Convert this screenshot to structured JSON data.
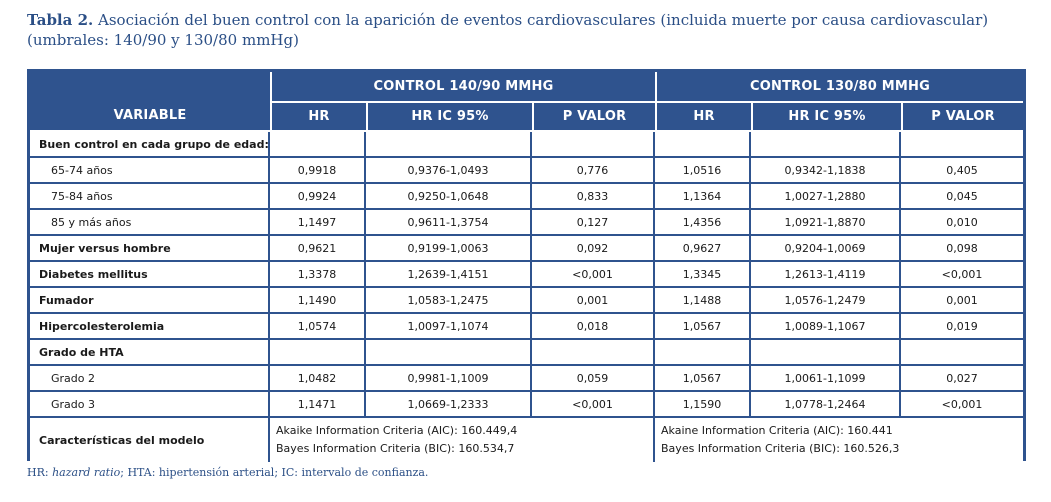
{
  "caption": {
    "label": "Tabla 2.",
    "text": " Asociación del buen control con la aparición de eventos cardiovasculares (incluida muerte por causa cardiovascular) (umbrales: 140/90 y 130/80 mmHg)"
  },
  "header": {
    "variable": "VARIABLE",
    "group1": "CONTROL 140/90 MMHG",
    "group2": "CONTROL 130/80 MMHG",
    "hr": "HR",
    "ic": "HR IC 95%",
    "p": "P VALOR"
  },
  "rows": [
    {
      "name": "Buen control en cada grupo de edad:",
      "bold": true,
      "indent": false,
      "cells": [
        "",
        "",
        "",
        "",
        "",
        ""
      ]
    },
    {
      "name": "65-74 años",
      "bold": false,
      "indent": true,
      "cells": [
        "0,9918",
        "0,9376-1,0493",
        "0,776",
        "1,0516",
        "0,9342-1,1838",
        "0,405"
      ]
    },
    {
      "name": "75-84 años",
      "bold": false,
      "indent": true,
      "cells": [
        "0,9924",
        "0,9250-1,0648",
        "0,833",
        "1,1364",
        "1,0027-1,2880",
        "0,045"
      ]
    },
    {
      "name": "85 y más años",
      "bold": false,
      "indent": true,
      "cells": [
        "1,1497",
        "0,9611-1,3754",
        "0,127",
        "1,4356",
        "1,0921-1,8870",
        "0,010"
      ]
    },
    {
      "name": "Mujer versus hombre",
      "bold": true,
      "indent": false,
      "cells": [
        "0,9621",
        "0,9199-1,0063",
        "0,092",
        "0,9627",
        "0,9204-1,0069",
        "0,098"
      ]
    },
    {
      "name": "Diabetes mellitus",
      "bold": true,
      "indent": false,
      "cells": [
        "1,3378",
        "1,2639-1,4151",
        "<0,001",
        "1,3345",
        "1,2613-1,4119",
        "<0,001"
      ]
    },
    {
      "name": "Fumador",
      "bold": true,
      "indent": false,
      "cells": [
        "1,1490",
        "1,0583-1,2475",
        "0,001",
        "1,1488",
        "1,0576-1,2479",
        "0,001"
      ]
    },
    {
      "name": "Hipercolesterolemia",
      "bold": true,
      "indent": false,
      "cells": [
        "1,0574",
        "1,0097-1,1074",
        "0,018",
        "1,0567",
        "1,0089-1,1067",
        "0,019"
      ]
    },
    {
      "name": "Grado de HTA",
      "bold": true,
      "indent": false,
      "cells": [
        "",
        "",
        "",
        "",
        "",
        ""
      ]
    },
    {
      "name": "Grado 2",
      "bold": false,
      "indent": true,
      "cells": [
        "1,0482",
        "0,9981-1,1009",
        "0,059",
        "1,0567",
        "1,0061-1,1099",
        "0,027"
      ]
    },
    {
      "name": "Grado 3",
      "bold": false,
      "indent": true,
      "cells": [
        "1,1471",
        "1,0669-1,2333",
        "<0,001",
        "1,1590",
        "1,0778-1,2464",
        "<0,001"
      ]
    }
  ],
  "model": {
    "name": "Características del modelo",
    "g1_aic": "Akaike Information Criteria (AIC): 160.449,4",
    "g1_bic": "Bayes Information Criteria (BIC): 160.534,7",
    "g2_aic": "Akaine Information Criteria (AIC): 160.441",
    "g2_bic": "Bayes Information Criteria (BIC): 160.526,3"
  },
  "footnote": {
    "a": "HR: ",
    "b": "hazard ratio",
    "c": "; HTA: hipertensión arterial; IC: intervalo de confianza."
  },
  "colors": {
    "header_bg": "#2f538e",
    "caption": "#2b4f86"
  }
}
